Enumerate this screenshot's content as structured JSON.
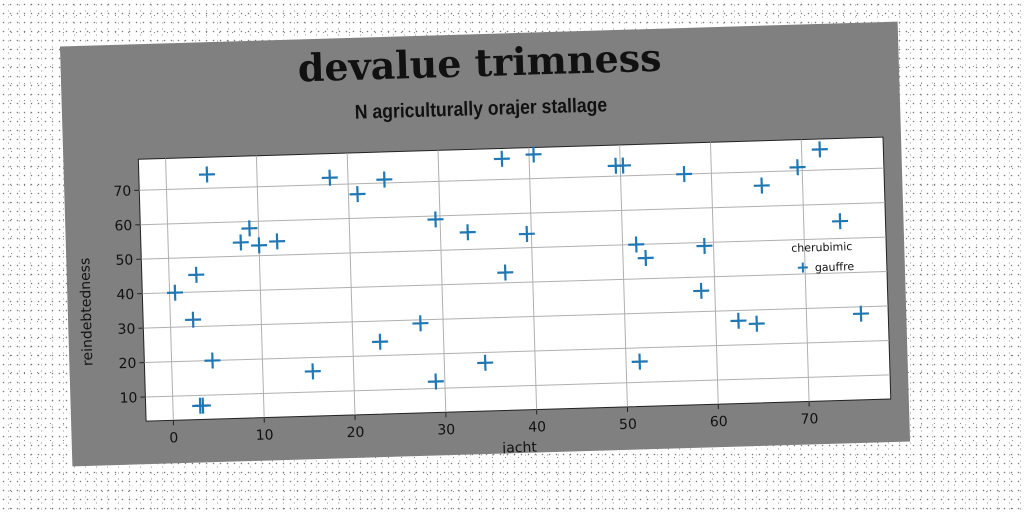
{
  "chart_data": {
    "type": "scatter",
    "title": "devalue trimness",
    "subtitle": "N agriculturally orajer stallage",
    "xlabel": "jacht",
    "ylabel": "reindebtedness",
    "xlim": [
      -3,
      79
    ],
    "ylim": [
      3,
      79
    ],
    "xticks": [
      0,
      10,
      20,
      30,
      40,
      50,
      60,
      70
    ],
    "yticks": [
      10,
      20,
      30,
      40,
      50,
      60,
      70
    ],
    "grid": true,
    "legend": {
      "title": "cherubimic",
      "placement": "right",
      "entries": [
        "gauffre"
      ]
    },
    "series": [
      {
        "name": "gauffre",
        "color": "#1f77b4",
        "marker": "plus",
        "points": [
          [
            0.6,
            40
          ],
          [
            2.5,
            32
          ],
          [
            3,
            45
          ],
          [
            4.5,
            74
          ],
          [
            4.5,
            20
          ],
          [
            3,
            7
          ],
          [
            3.3,
            7
          ],
          [
            8,
            54
          ],
          [
            9,
            58
          ],
          [
            10,
            53
          ],
          [
            12,
            54
          ],
          [
            15.5,
            16
          ],
          [
            18,
            72
          ],
          [
            21,
            67
          ],
          [
            23,
            24
          ],
          [
            24,
            71
          ],
          [
            27.5,
            29
          ],
          [
            29,
            12
          ],
          [
            29.5,
            59
          ],
          [
            33,
            55
          ],
          [
            34.5,
            17
          ],
          [
            37,
            43
          ],
          [
            37,
            76
          ],
          [
            39.5,
            54
          ],
          [
            40.5,
            77
          ],
          [
            49.5,
            73
          ],
          [
            50.3,
            73
          ],
          [
            51.5,
            50
          ],
          [
            51.5,
            16
          ],
          [
            52.5,
            46
          ],
          [
            57,
            70
          ],
          [
            58.5,
            36
          ],
          [
            59,
            49
          ],
          [
            62.5,
            27
          ],
          [
            64.5,
            26
          ],
          [
            65.5,
            66
          ],
          [
            69.5,
            71
          ],
          [
            72,
            76
          ],
          [
            74,
            55
          ],
          [
            76,
            28
          ]
        ]
      }
    ]
  }
}
